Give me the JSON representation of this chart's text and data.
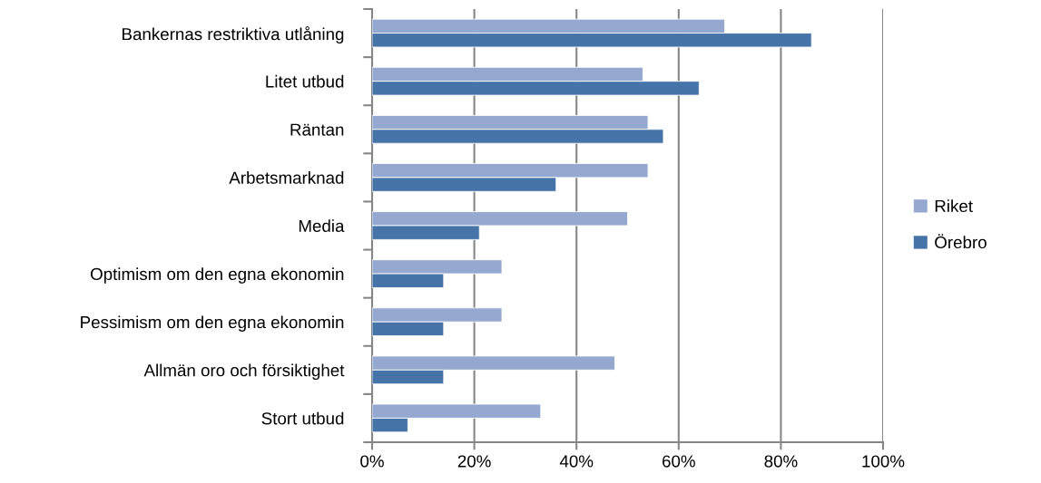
{
  "chart_data": {
    "type": "bar",
    "orientation": "horizontal",
    "categories": [
      "Bankernas restriktiva utlåning",
      "Litet utbud",
      "Räntan",
      "Arbetsmarknad",
      "Media",
      "Optimism om den egna ekonomin",
      "Pessimism om den egna ekonomin",
      "Allmän oro och försiktighet",
      "Stort utbud"
    ],
    "series": [
      {
        "name": "Riket",
        "color": "#95a9d0",
        "values": [
          69,
          53,
          54,
          54,
          50,
          25.4,
          25.4,
          47.5,
          33
        ]
      },
      {
        "name": "Örebro",
        "color": "#4674a8",
        "values": [
          86,
          64,
          57,
          36,
          21,
          14,
          14,
          14,
          7
        ]
      }
    ],
    "xlim": [
      0,
      100
    ],
    "xticks": [
      {
        "value": 0,
        "label": "0%"
      },
      {
        "value": 20,
        "label": "20%"
      },
      {
        "value": 40,
        "label": "40%"
      },
      {
        "value": 60,
        "label": "60%"
      },
      {
        "value": 80,
        "label": "80%"
      },
      {
        "value": 100,
        "label": "100%"
      }
    ],
    "grid": "x",
    "legend": "right"
  }
}
